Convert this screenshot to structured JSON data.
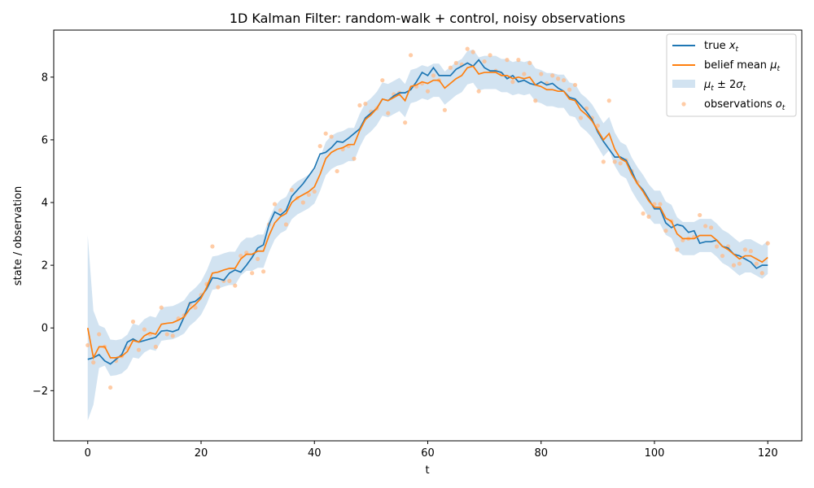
{
  "chart_data": {
    "type": "line",
    "title": "1D Kalman Filter: random-walk + control, noisy observations",
    "xlabel": "t",
    "ylabel": "state / observation",
    "xlim": [
      -6,
      126
    ],
    "ylim": [
      -3.6,
      9.5
    ],
    "x_ticks": [
      0,
      20,
      40,
      60,
      80,
      100,
      120
    ],
    "y_ticks": [
      -2,
      0,
      2,
      4,
      6,
      8
    ],
    "x_tick_labels": [
      "0",
      "20",
      "40",
      "60",
      "80",
      "100",
      "120"
    ],
    "y_tick_labels": [
      "−2",
      "0",
      "2",
      "4",
      "6",
      "8"
    ],
    "legend_position": "top-right",
    "legend": {
      "true_prefix": "true ",
      "true_sym": "x",
      "true_sub": "t",
      "mean_prefix": "belief mean ",
      "mean_sym": "μ",
      "mean_sub": "t",
      "band_sym1": "μ",
      "band_sub1": "t",
      "band_mid": " ± 2",
      "band_sym2": "σ",
      "band_sub2": "t",
      "obs_prefix": "observations ",
      "obs_sym": "o",
      "obs_sub": "t"
    },
    "colors": {
      "true": "#1f77b4",
      "mean": "#ff7f0e",
      "band": "#a6c8e4",
      "obs": "#ffbb88"
    },
    "x": [
      0,
      1,
      2,
      3,
      4,
      5,
      6,
      7,
      8,
      9,
      10,
      11,
      12,
      13,
      14,
      15,
      16,
      17,
      18,
      19,
      20,
      21,
      22,
      23,
      24,
      25,
      26,
      27,
      28,
      29,
      30,
      31,
      32,
      33,
      34,
      35,
      36,
      37,
      38,
      39,
      40,
      41,
      42,
      43,
      44,
      45,
      46,
      47,
      48,
      49,
      50,
      51,
      52,
      53,
      54,
      55,
      56,
      57,
      58,
      59,
      60,
      61,
      62,
      63,
      64,
      65,
      66,
      67,
      68,
      69,
      70,
      71,
      72,
      73,
      74,
      75,
      76,
      77,
      78,
      79,
      80,
      81,
      82,
      83,
      84,
      85,
      86,
      87,
      88,
      89,
      90,
      91,
      92,
      93,
      94,
      95,
      96,
      97,
      98,
      99,
      100,
      101,
      102,
      103,
      104,
      105,
      106,
      107,
      108,
      109,
      110,
      111,
      112,
      113,
      114,
      115,
      116,
      117,
      118,
      119,
      120
    ],
    "series": [
      {
        "name": "true x_t",
        "values": [
          -1.0,
          -0.95,
          -0.85,
          -1.05,
          -1.15,
          -1.0,
          -0.85,
          -0.45,
          -0.35,
          -0.45,
          -0.4,
          -0.35,
          -0.3,
          -0.1,
          -0.08,
          -0.12,
          -0.05,
          0.35,
          0.8,
          0.85,
          1.0,
          1.25,
          1.6,
          1.58,
          1.52,
          1.75,
          1.85,
          1.78,
          2.0,
          2.25,
          2.55,
          2.65,
          3.3,
          3.7,
          3.6,
          3.75,
          4.2,
          4.4,
          4.6,
          4.85,
          5.1,
          5.55,
          5.6,
          5.75,
          5.95,
          5.92,
          6.05,
          6.2,
          6.35,
          6.7,
          6.85,
          7.0,
          7.3,
          7.25,
          7.4,
          7.5,
          7.5,
          7.6,
          7.85,
          8.15,
          8.05,
          8.3,
          8.05,
          8.05,
          8.05,
          8.25,
          8.35,
          8.45,
          8.35,
          8.55,
          8.3,
          8.2,
          8.2,
          8.15,
          7.95,
          8.05,
          7.85,
          7.9,
          7.8,
          7.75,
          7.85,
          7.75,
          7.8,
          7.65,
          7.55,
          7.35,
          7.3,
          7.1,
          6.9,
          6.65,
          6.25,
          5.95,
          5.7,
          5.45,
          5.45,
          5.35,
          5.0,
          4.6,
          4.4,
          4.1,
          3.8,
          3.8,
          3.35,
          3.2,
          3.3,
          3.25,
          3.05,
          3.1,
          2.7,
          2.75,
          2.75,
          2.8,
          2.6,
          2.55,
          2.35,
          2.3,
          2.2,
          2.1,
          1.9,
          2.0,
          2.0
        ]
      },
      {
        "name": "belief mean μ_t",
        "values": [
          0.0,
          -0.95,
          -0.6,
          -0.6,
          -0.95,
          -0.95,
          -0.9,
          -0.75,
          -0.4,
          -0.45,
          -0.25,
          -0.15,
          -0.2,
          0.12,
          0.15,
          0.17,
          0.25,
          0.35,
          0.6,
          0.75,
          0.95,
          1.3,
          1.75,
          1.78,
          1.85,
          1.9,
          1.9,
          2.2,
          2.35,
          2.35,
          2.45,
          2.45,
          2.95,
          3.35,
          3.55,
          3.65,
          4.0,
          4.15,
          4.25,
          4.35,
          4.5,
          4.9,
          5.4,
          5.6,
          5.7,
          5.75,
          5.85,
          5.85,
          6.3,
          6.65,
          6.8,
          7.0,
          7.3,
          7.25,
          7.35,
          7.45,
          7.25,
          7.7,
          7.75,
          7.85,
          7.8,
          7.9,
          7.9,
          7.65,
          7.8,
          7.95,
          8.05,
          8.3,
          8.35,
          8.1,
          8.15,
          8.15,
          8.15,
          8.05,
          8.05,
          7.95,
          8.0,
          7.95,
          8.0,
          7.75,
          7.7,
          7.6,
          7.6,
          7.55,
          7.55,
          7.3,
          7.25,
          6.95,
          6.8,
          6.6,
          6.3,
          6.0,
          6.2,
          5.7,
          5.4,
          5.3,
          4.9,
          4.6,
          4.35,
          4.05,
          3.85,
          3.85,
          3.5,
          3.4,
          3.0,
          2.85,
          2.85,
          2.85,
          2.95,
          2.95,
          2.95,
          2.8,
          2.6,
          2.5,
          2.35,
          2.2,
          2.3,
          2.3,
          2.2,
          2.1,
          2.25
        ]
      }
    ],
    "sigma2": [
      2.95,
      1.5,
      0.68,
      0.6,
      0.58,
      0.56,
      0.55,
      0.54,
      0.54,
      0.53,
      0.53,
      0.53,
      0.53,
      0.53,
      0.53,
      0.53,
      0.53,
      0.53,
      0.53,
      0.53,
      0.53,
      0.53,
      0.53,
      0.53,
      0.53,
      0.53,
      0.53,
      0.53,
      0.53,
      0.53,
      0.53,
      0.53,
      0.53,
      0.53,
      0.53,
      0.53,
      0.53,
      0.53,
      0.53,
      0.53,
      0.53,
      0.53,
      0.53,
      0.53,
      0.53,
      0.53,
      0.53,
      0.53,
      0.53,
      0.53,
      0.53,
      0.53,
      0.53,
      0.53,
      0.53,
      0.53,
      0.53,
      0.53,
      0.53,
      0.53,
      0.53,
      0.53,
      0.53,
      0.53,
      0.53,
      0.53,
      0.53,
      0.53,
      0.53,
      0.53,
      0.53,
      0.53,
      0.53,
      0.53,
      0.53,
      0.53,
      0.53,
      0.53,
      0.53,
      0.53,
      0.53,
      0.53,
      0.53,
      0.53,
      0.53,
      0.53,
      0.53,
      0.53,
      0.53,
      0.53,
      0.53,
      0.53,
      0.53,
      0.53,
      0.53,
      0.53,
      0.53,
      0.53,
      0.53,
      0.53,
      0.53,
      0.53,
      0.53,
      0.53,
      0.53,
      0.53,
      0.53,
      0.53,
      0.53,
      0.53,
      0.53,
      0.53,
      0.53,
      0.53,
      0.53,
      0.53,
      0.53,
      0.53,
      0.53,
      0.53,
      0.53
    ],
    "observations": {
      "x": [
        0,
        1,
        2,
        3,
        4,
        5,
        6,
        7,
        8,
        9,
        10,
        11,
        12,
        13,
        14,
        15,
        16,
        17,
        18,
        19,
        20,
        21,
        22,
        23,
        24,
        25,
        26,
        27,
        28,
        29,
        30,
        31,
        32,
        33,
        34,
        35,
        36,
        37,
        38,
        39,
        40,
        41,
        42,
        43,
        44,
        45,
        46,
        47,
        48,
        49,
        50,
        51,
        52,
        53,
        54,
        55,
        56,
        57,
        58,
        59,
        60,
        61,
        62,
        63,
        64,
        65,
        66,
        67,
        68,
        69,
        70,
        71,
        72,
        73,
        74,
        75,
        76,
        77,
        78,
        79,
        80,
        81,
        82,
        83,
        84,
        85,
        86,
        87,
        88,
        89,
        90,
        91,
        92,
        93,
        94,
        95,
        96,
        97,
        98,
        99,
        100,
        101,
        102,
        103,
        104,
        105,
        106,
        107,
        108,
        109,
        110,
        111,
        112,
        113,
        114,
        115,
        116,
        117,
        118,
        119,
        120
      ],
      "y": [
        -0.55,
        -1.1,
        -0.2,
        -0.6,
        -1.9,
        -1.05,
        -0.9,
        -0.65,
        0.2,
        -0.7,
        -0.05,
        -0.2,
        -0.6,
        0.65,
        -0.2,
        -0.25,
        0.3,
        0.4,
        0.75,
        0.65,
        1.05,
        1.4,
        2.6,
        1.3,
        1.5,
        1.5,
        1.35,
        2.3,
        2.4,
        1.75,
        2.2,
        1.8,
        3.3,
        3.95,
        3.75,
        3.3,
        4.4,
        4.15,
        4.0,
        4.25,
        4.35,
        5.8,
        6.2,
        6.1,
        5.0,
        5.7,
        5.8,
        5.4,
        7.1,
        7.15,
        6.9,
        7.0,
        7.9,
        6.85,
        7.45,
        7.5,
        6.55,
        8.7,
        7.7,
        7.8,
        7.55,
        8.05,
        7.9,
        6.95,
        8.3,
        8.45,
        8.4,
        8.9,
        8.8,
        7.55,
        8.5,
        8.7,
        8.2,
        8.1,
        8.55,
        7.85,
        8.55,
        8.1,
        8.45,
        7.25,
        8.1,
        7.8,
        8.05,
        7.95,
        7.9,
        7.6,
        7.75,
        6.7,
        7.0,
        6.7,
        6.45,
        5.3,
        7.25,
        5.3,
        5.25,
        5.35,
        5.0,
        4.65,
        3.65,
        3.55,
        3.95,
        3.95,
        3.1,
        3.4,
        2.5,
        2.8,
        2.85,
        2.9,
        3.6,
        3.25,
        3.2,
        2.6,
        2.3,
        2.6,
        2.0,
        2.05,
        2.5,
        2.45,
        2.05,
        1.75,
        2.7
      ]
    }
  }
}
